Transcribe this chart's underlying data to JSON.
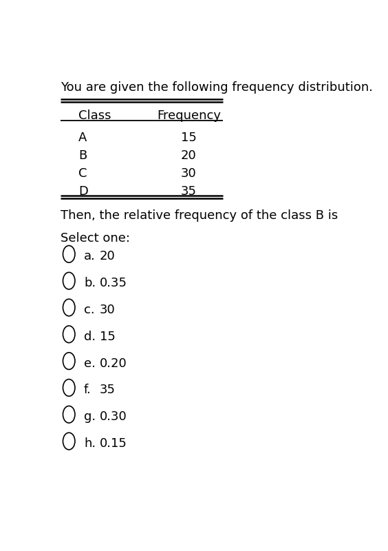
{
  "title": "You are given the following frequency distribution.",
  "table_headers": [
    "Class",
    "Frequency"
  ],
  "table_rows": [
    [
      "A",
      "15"
    ],
    [
      "B",
      "20"
    ],
    [
      "C",
      "30"
    ],
    [
      "D",
      "35"
    ]
  ],
  "question": "Then, the relative frequency of the class B is",
  "select_label": "Select one:",
  "options": [
    [
      "a.",
      "20"
    ],
    [
      "b.",
      "0.35"
    ],
    [
      "c.",
      "30"
    ],
    [
      "d.",
      "15"
    ],
    [
      "e.",
      "0.20"
    ],
    [
      "f.",
      "35"
    ],
    [
      "g.",
      "0.30"
    ],
    [
      "h.",
      "0.15"
    ]
  ],
  "bg_color": "#ffffff",
  "text_color": "#000000",
  "font_size_title": 13,
  "font_size_table": 13,
  "font_size_question": 13,
  "font_size_options": 13
}
